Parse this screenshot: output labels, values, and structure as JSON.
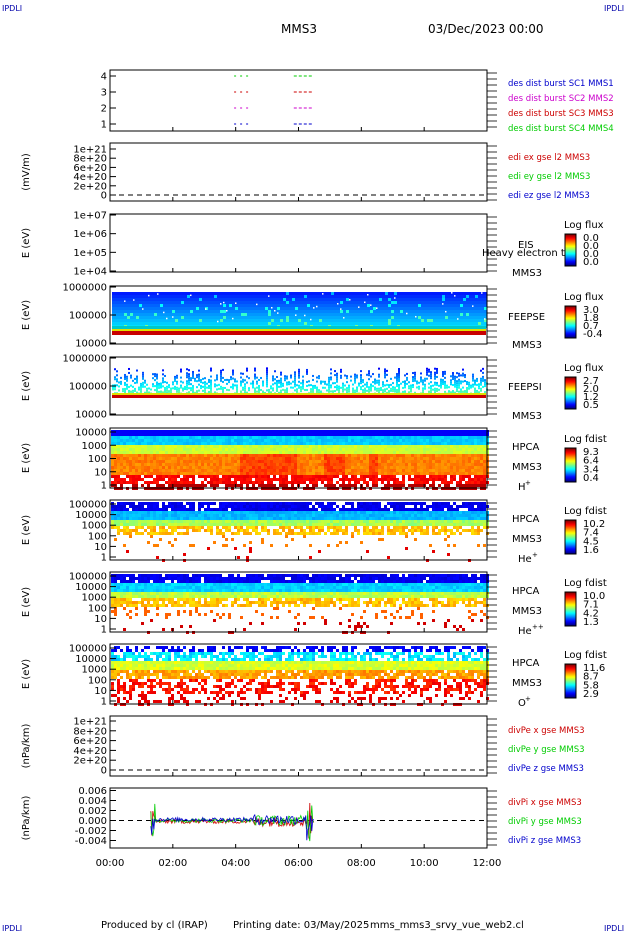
{
  "corner_label": "IPDLI",
  "title": "MMS3",
  "date": "03/Dec/2023 00:00",
  "footer": {
    "produced": "Produced by cl (IRAP)",
    "printing": "Printing date: 03/May/2025",
    "file": "mms_mms3_srvy_vue_web2.cl"
  },
  "x_ticks": [
    "00:00",
    "02:00",
    "04:00",
    "06:00",
    "08:00",
    "10:00",
    "12:00"
  ],
  "colors": {
    "blue": "#0000cc",
    "magenta": "#cc00cc",
    "red": "#cc0000",
    "green": "#00cc00"
  },
  "chart_data": [
    {
      "type": "line",
      "panel": "burst",
      "ylim": [
        0.5,
        4.5
      ],
      "yticks": [
        "4",
        "3",
        "2",
        "1"
      ],
      "legend": [
        {
          "text": "des dist burst SC1 MMS1",
          "color": "#0000cc"
        },
        {
          "text": "des dist burst SC2 MMS2",
          "color": "#cc00cc"
        },
        {
          "text": "des dist burst SC3 MMS3",
          "color": "#cc0000"
        },
        {
          "text": "des dist burst SC4 MMS4",
          "color": "#00cc00"
        }
      ],
      "intervals_hours": [
        [
          3.95,
          4.45
        ],
        [
          5.85,
          6.4
        ]
      ]
    },
    {
      "type": "line",
      "panel": "edi",
      "ylabel": "(mV/m)",
      "yticks": [
        "1e+21",
        "8e+20",
        "6e+20",
        "4e+20",
        "2e+20",
        "0"
      ],
      "legend": [
        {
          "text": "edi ex gse l2 MMS3",
          "color": "#cc0000"
        },
        {
          "text": "edi ey gse l2 MMS3",
          "color": "#00cc00"
        },
        {
          "text": "edi ez gse l2 MMS3",
          "color": "#0000cc"
        }
      ]
    },
    {
      "type": "heatmap",
      "panel": "eis",
      "ylabel": "E (eV)",
      "yticks": [
        "1e+07",
        "1e+06",
        "1e+05",
        "1e+04"
      ],
      "instrument": "EIS",
      "instrument2": "MMS3",
      "overlay_text": "Heavy electron to",
      "colorbar_title": "Log flux",
      "colorbar_ticks": [
        "0.0",
        "0.0",
        "0.0",
        "0.0"
      ]
    },
    {
      "type": "heatmap",
      "panel": "feepse",
      "ylabel": "E (eV)",
      "yticks": [
        "1000000",
        "100000",
        "10000"
      ],
      "instrument": "FEEPSE",
      "instrument2": "MMS3",
      "colorbar_title": "Log flux",
      "colorbar_ticks": [
        "3.0",
        "1.8",
        "0.7",
        "-0.4"
      ]
    },
    {
      "type": "heatmap",
      "panel": "feepsi",
      "ylabel": "E (eV)",
      "yticks": [
        "1000000",
        "100000",
        "10000"
      ],
      "instrument": "FEEPSI",
      "instrument2": "MMS3",
      "colorbar_title": "Log flux",
      "colorbar_ticks": [
        "2.7",
        "2.0",
        "1.2",
        "0.5"
      ]
    },
    {
      "type": "heatmap",
      "panel": "hpca_h",
      "ylabel": "E (eV)",
      "yticks": [
        "10000",
        "1000",
        "100",
        "10",
        "1"
      ],
      "instrument": "HPCA",
      "instrument2": "MMS3",
      "species": "H",
      "species_sup": "+",
      "colorbar_title": "Log fdist",
      "colorbar_ticks": [
        "9.3",
        "6.4",
        "3.4",
        "0.4"
      ]
    },
    {
      "type": "heatmap",
      "panel": "hpca_he",
      "ylabel": "E (eV)",
      "yticks": [
        "100000",
        "10000",
        "1000",
        "100",
        "10",
        "1"
      ],
      "instrument": "HPCA",
      "instrument2": "MMS3",
      "species": "He",
      "species_sup": "+",
      "colorbar_title": "Log fdist",
      "colorbar_ticks": [
        "10.2",
        "7.4",
        "4.5",
        "1.6"
      ]
    },
    {
      "type": "heatmap",
      "panel": "hpca_he2",
      "ylabel": "E (eV)",
      "yticks": [
        "100000",
        "10000",
        "1000",
        "100",
        "10",
        "1"
      ],
      "instrument": "HPCA",
      "instrument2": "MMS3",
      "species": "He",
      "species_sup": "++",
      "colorbar_title": "Log fdist",
      "colorbar_ticks": [
        "10.0",
        "7.1",
        "4.2",
        "1.3"
      ]
    },
    {
      "type": "heatmap",
      "panel": "hpca_o",
      "ylabel": "E (eV)",
      "yticks": [
        "100000",
        "10000",
        "1000",
        "100",
        "10",
        "1"
      ],
      "instrument": "HPCA",
      "instrument2": "MMS3",
      "species": "O",
      "species_sup": "+",
      "colorbar_title": "Log fdist",
      "colorbar_ticks": [
        "11.6",
        "8.7",
        "5.8",
        "2.9"
      ]
    },
    {
      "type": "line",
      "panel": "dive",
      "ylabel": "(nPa/km)",
      "yticks": [
        "1e+21",
        "8e+20",
        "6e+20",
        "4e+20",
        "2e+20",
        "0"
      ],
      "legend": [
        {
          "text": "divPe x gse MMS3",
          "color": "#cc0000"
        },
        {
          "text": "divPe y gse MMS3",
          "color": "#00cc00"
        },
        {
          "text": "divPe z gse MMS3",
          "color": "#0000cc"
        }
      ]
    },
    {
      "type": "line",
      "panel": "divi",
      "ylabel": "(nPa/km)",
      "yticks": [
        "0.006",
        "0.004",
        "0.002",
        "0.000",
        "-0.002",
        "-0.004"
      ],
      "ylim": [
        -0.0055,
        0.0065
      ],
      "legend": [
        {
          "text": "divPi x gse MMS3",
          "color": "#cc0000"
        },
        {
          "text": "divPi y gse MMS3",
          "color": "#00cc00"
        },
        {
          "text": "divPi z gse MMS3",
          "color": "#0000cc"
        }
      ],
      "data_range_hours": [
        1.3,
        6.5
      ]
    }
  ]
}
